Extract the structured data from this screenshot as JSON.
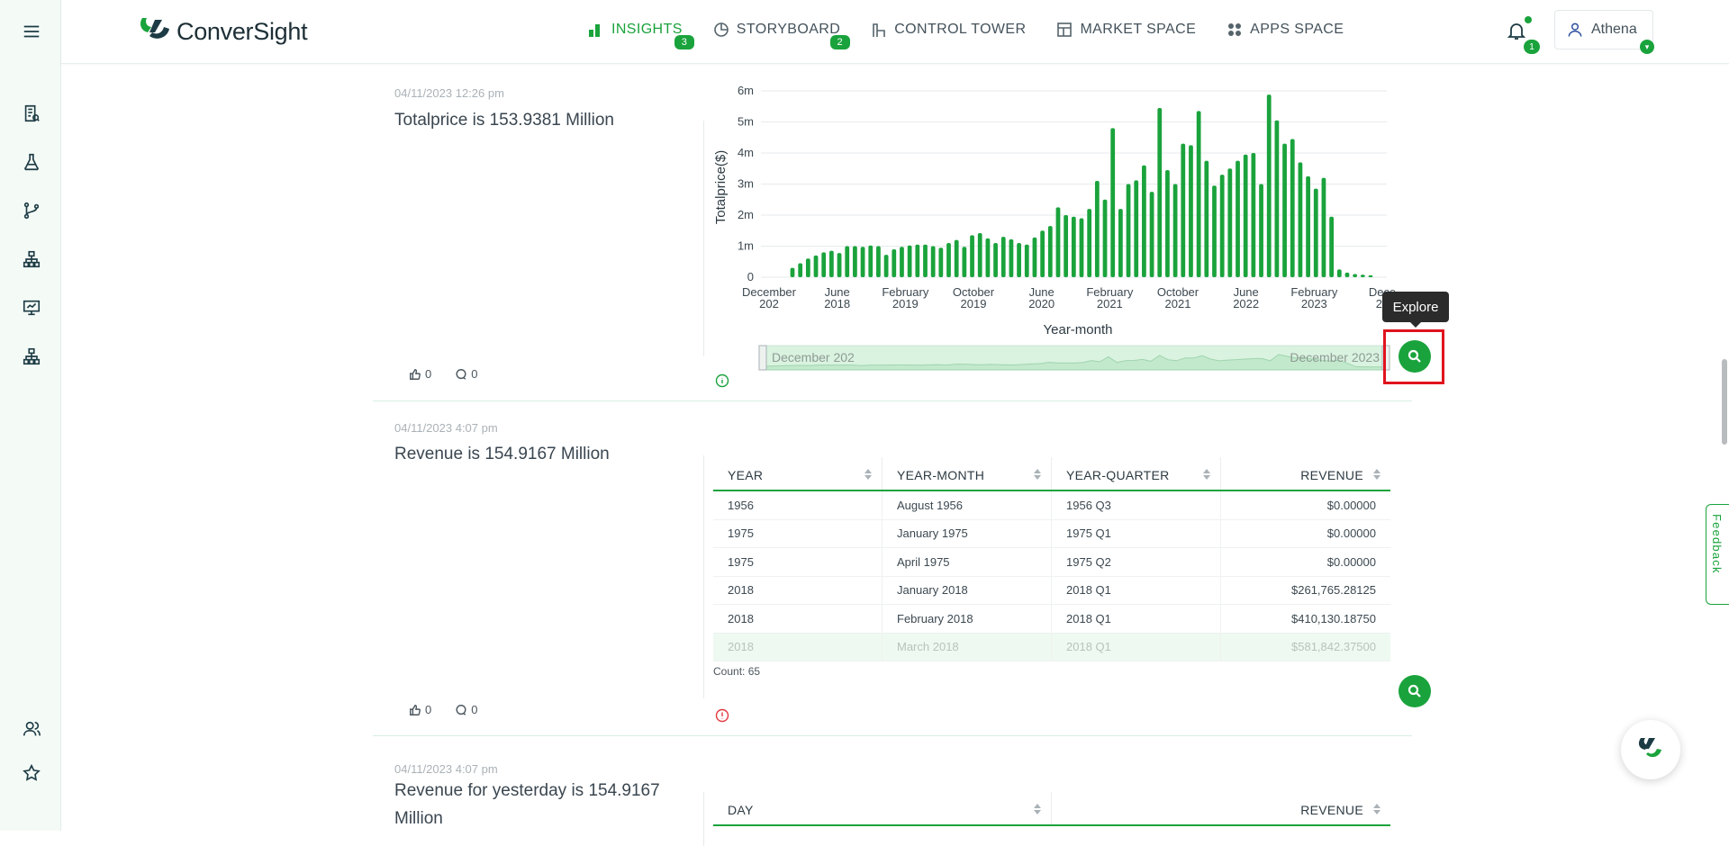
{
  "app": {
    "brand": "ConverSight",
    "accent": "#1aa33c"
  },
  "nav": [
    {
      "label": "INSIGHTS",
      "badge": "3",
      "active": true
    },
    {
      "label": "STORYBOARD",
      "badge": "2"
    },
    {
      "label": "CONTROL TOWER"
    },
    {
      "label": "MARKET SPACE"
    },
    {
      "label": "APPS SPACE"
    }
  ],
  "notifications": {
    "count": "1"
  },
  "user": {
    "name": "Athena",
    "caret": "▾"
  },
  "cards": [
    {
      "date": "04/11/2023 12:26 pm",
      "title": "Totalprice is 153.9381 Million",
      "likes": "0",
      "comments": "0"
    },
    {
      "date": "04/11/2023 4:07 pm",
      "title": "Revenue is 154.9167 Million",
      "likes": "0",
      "comments": "0",
      "table": {
        "headers": [
          "YEAR",
          "YEAR-MONTH",
          "YEAR-QUARTER",
          "REVENUE"
        ],
        "rows": [
          [
            "1956",
            "August 1956",
            "1956 Q3",
            "$0.00000"
          ],
          [
            "1975",
            "January 1975",
            "1975 Q1",
            "$0.00000"
          ],
          [
            "1975",
            "April 1975",
            "1975 Q2",
            "$0.00000"
          ],
          [
            "2018",
            "January 2018",
            "2018 Q1",
            "$261,765.28125"
          ],
          [
            "2018",
            "February 2018",
            "2018 Q1",
            "$410,130.18750"
          ],
          [
            "2018",
            "March 2018",
            "2018 Q1",
            "$581,842.37500"
          ]
        ],
        "count": "Count: 65"
      }
    },
    {
      "date": "04/11/2023 4:07 pm",
      "title": "Revenue for yesterday is 154.9167 Million",
      "table": {
        "headers": [
          "DAY",
          "REVENUE"
        ]
      }
    }
  ],
  "tooltip": "Explore",
  "feedback": "Feedback",
  "chart_data": {
    "type": "bar",
    "title": "",
    "xlabel": "Year-month",
    "ylabel": "Totalprice($)",
    "ylim": [
      0,
      6
    ],
    "yticks": [
      "0",
      "1m",
      "2m",
      "3m",
      "4m",
      "5m",
      "6m"
    ],
    "xticks": [
      [
        "December",
        "202"
      ],
      [
        "June",
        "2018"
      ],
      [
        "February",
        "2019"
      ],
      [
        "October",
        "2019"
      ],
      [
        "June",
        "2020"
      ],
      [
        "February",
        "2021"
      ],
      [
        "October",
        "2021"
      ],
      [
        "June",
        "2022"
      ],
      [
        "February",
        "2023"
      ],
      [
        "Dece",
        "20"
      ]
    ],
    "values": [
      0.3,
      0.45,
      0.6,
      0.7,
      0.8,
      0.85,
      0.78,
      1.0,
      1.0,
      0.98,
      1.02,
      1.0,
      0.72,
      0.9,
      0.98,
      1.02,
      1.05,
      1.05,
      1.0,
      0.95,
      1.1,
      1.2,
      0.98,
      1.35,
      1.42,
      1.25,
      1.1,
      1.3,
      1.22,
      1.1,
      1.05,
      1.28,
      1.5,
      1.65,
      2.25,
      2.0,
      1.95,
      1.9,
      2.2,
      3.1,
      2.5,
      4.8,
      2.2,
      3.0,
      3.12,
      3.6,
      2.75,
      5.45,
      3.45,
      3.0,
      4.3,
      4.25,
      5.35,
      3.75,
      2.95,
      3.3,
      3.5,
      3.75,
      3.95,
      4.0,
      3.0,
      5.88,
      5.05,
      4.3,
      4.45,
      3.7,
      3.25,
      2.85,
      3.2,
      1.95,
      0.25,
      0.15,
      0.1,
      0.08,
      0.06
    ],
    "range_slider": {
      "start": "December 202",
      "end": "December 2023"
    }
  }
}
